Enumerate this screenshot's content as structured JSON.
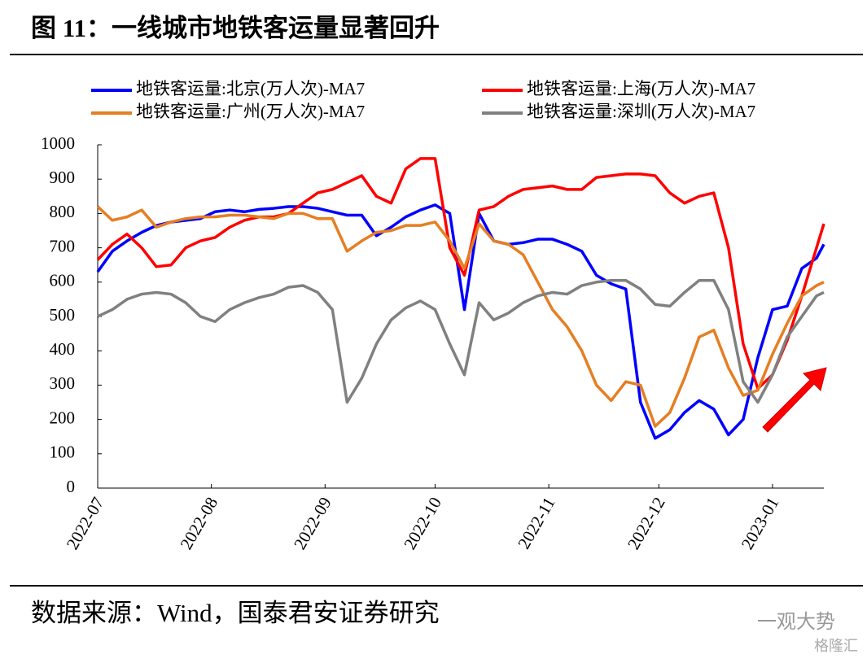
{
  "chart_data": {
    "type": "line",
    "title": "图 11：一线城市地铁客运量显著回升",
    "source": "数据来源：Wind，国泰君安证券研究",
    "watermarks": [
      "一观大势",
      "格隆汇"
    ],
    "x": [
      0,
      4,
      8,
      12,
      16,
      20,
      24,
      28,
      32,
      36,
      40,
      44,
      48,
      52,
      56,
      60,
      64,
      68,
      72,
      76,
      80,
      84,
      88,
      92,
      96,
      100,
      104,
      108,
      112,
      116,
      120,
      124,
      128,
      132,
      136,
      140,
      144,
      148,
      152,
      156,
      160,
      164,
      168,
      172,
      176,
      180,
      184,
      188,
      192,
      196,
      198
    ],
    "xlim": [
      0,
      198
    ],
    "xticks": [
      {
        "value": 0,
        "label": "2022-07"
      },
      {
        "value": 31,
        "label": "2022-08"
      },
      {
        "value": 62,
        "label": "2022-09"
      },
      {
        "value": 92,
        "label": "2022-10"
      },
      {
        "value": 123,
        "label": "2022-11"
      },
      {
        "value": 153,
        "label": "2022-12"
      },
      {
        "value": 184,
        "label": "2023-01"
      }
    ],
    "ylim": [
      0,
      1000
    ],
    "yticks": [
      0,
      100,
      200,
      300,
      400,
      500,
      600,
      700,
      800,
      900,
      1000
    ],
    "series": [
      {
        "name": "地铁客运量:北京(万人次)-MA7",
        "color": "#0000ff",
        "values": [
          630,
          690,
          720,
          745,
          765,
          775,
          780,
          785,
          805,
          810,
          805,
          812,
          815,
          820,
          820,
          815,
          805,
          795,
          795,
          735,
          760,
          790,
          810,
          825,
          800,
          520,
          800,
          720,
          710,
          715,
          725,
          725,
          710,
          690,
          620,
          595,
          580,
          250,
          145,
          170,
          220,
          255,
          230,
          155,
          200,
          380,
          520,
          530,
          640,
          670,
          710
        ]
      },
      {
        "name": "地铁客运量:上海(万人次)-MA7",
        "color": "#ff0000",
        "values": [
          665,
          710,
          740,
          700,
          645,
          650,
          700,
          720,
          730,
          760,
          780,
          790,
          790,
          800,
          830,
          860,
          870,
          890,
          910,
          850,
          830,
          930,
          960,
          960,
          700,
          620,
          810,
          820,
          850,
          870,
          875,
          880,
          870,
          870,
          905,
          910,
          915,
          915,
          910,
          860,
          830,
          850,
          860,
          700,
          420,
          290,
          330,
          430,
          560,
          700,
          770
        ]
      },
      {
        "name": "地铁客运量:广州(万人次)-MA7",
        "color": "#e67e22",
        "values": [
          820,
          780,
          790,
          810,
          760,
          775,
          785,
          790,
          790,
          795,
          795,
          790,
          785,
          800,
          800,
          785,
          785,
          690,
          720,
          745,
          750,
          765,
          765,
          775,
          720,
          640,
          770,
          720,
          710,
          680,
          600,
          520,
          470,
          400,
          300,
          255,
          310,
          300,
          180,
          220,
          320,
          440,
          460,
          350,
          270,
          285,
          390,
          480,
          560,
          590,
          600
        ]
      },
      {
        "name": "地铁客运量:深圳(万人次)-MA7",
        "color": "#808080",
        "values": [
          500,
          520,
          550,
          565,
          570,
          565,
          540,
          500,
          485,
          520,
          540,
          555,
          565,
          585,
          590,
          570,
          520,
          250,
          320,
          420,
          490,
          525,
          545,
          520,
          420,
          330,
          540,
          490,
          510,
          540,
          560,
          570,
          565,
          590,
          600,
          605,
          605,
          580,
          535,
          530,
          570,
          605,
          605,
          520,
          310,
          250,
          330,
          440,
          500,
          560,
          570
        ]
      }
    ]
  }
}
